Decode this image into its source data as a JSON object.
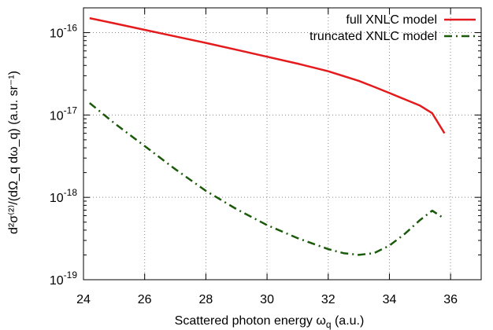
{
  "chart_data": {
    "type": "line",
    "xlabel": "Scattered photon energy ω_q (a.u.)",
    "ylabel": "d²σ⁽²⁾/(dΩ_q dω_q) (a.u. sr⁻¹)",
    "xlim": [
      24,
      37
    ],
    "ylim": [
      1e-19,
      2e-16
    ],
    "yscale": "log",
    "xticks": [
      24,
      26,
      28,
      30,
      32,
      34,
      36
    ],
    "xtick_labels": [
      "24",
      "26",
      "28",
      "30",
      "32",
      "34",
      "36"
    ],
    "yticks": [
      1e-19,
      1e-18,
      1e-17,
      1e-16
    ],
    "ytick_labels": [
      {
        "base": "10",
        "exp": "-19"
      },
      {
        "base": "10",
        "exp": "-18"
      },
      {
        "base": "10",
        "exp": "-17"
      },
      {
        "base": "10",
        "exp": "-16"
      }
    ],
    "grid": true,
    "legend_position": "top-right",
    "series": [
      {
        "name": "full XNLC model",
        "color": "#e41a1c",
        "style": "solid",
        "x": [
          24.2,
          25,
          26,
          27,
          28,
          29,
          30,
          31,
          32,
          33,
          33.5,
          34,
          34.5,
          35,
          35.4,
          35.8
        ],
        "y": [
          1.5e-16,
          1.3e-16,
          1.08e-16,
          9e-17,
          7.5e-17,
          6.2e-17,
          5.1e-17,
          4.2e-17,
          3.4e-17,
          2.6e-17,
          2.2e-17,
          1.85e-17,
          1.55e-17,
          1.3e-17,
          1.05e-17,
          6e-18
        ]
      },
      {
        "name": "truncated XNLC model",
        "color": "#1a5a0a",
        "style": "dash-dot",
        "x": [
          24.2,
          25,
          26,
          27,
          28,
          29,
          30,
          31,
          32,
          32.5,
          33,
          33.5,
          34,
          34.5,
          35,
          35.4,
          35.8
        ],
        "y": [
          1.4e-17,
          8e-18,
          4.2e-18,
          2.2e-18,
          1.2e-18,
          7.2e-19,
          4.6e-19,
          3.2e-19,
          2.35e-19,
          2.1e-19,
          2e-19,
          2.1e-19,
          2.6e-19,
          3.6e-19,
          5.3e-19,
          6.9e-19,
          5.5e-19
        ]
      }
    ]
  }
}
